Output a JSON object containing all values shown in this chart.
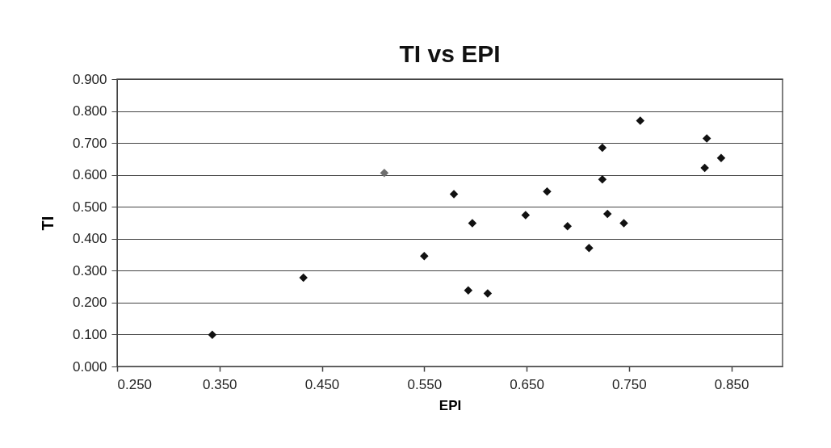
{
  "chart_data": {
    "type": "scatter",
    "title": "TI vs EPI",
    "xlabel": "EPI",
    "ylabel": "TI",
    "x": [
      0.343,
      0.432,
      0.511,
      0.55,
      0.579,
      0.593,
      0.597,
      0.612,
      0.649,
      0.67,
      0.69,
      0.711,
      0.724,
      0.724,
      0.729,
      0.745,
      0.761,
      0.824,
      0.826,
      0.84
    ],
    "values": [
      0.099,
      0.278,
      0.606,
      0.346,
      0.54,
      0.238,
      0.449,
      0.229,
      0.474,
      0.548,
      0.439,
      0.371,
      0.586,
      0.685,
      0.478,
      0.449,
      0.77,
      0.622,
      0.714,
      0.653
    ],
    "colors": [
      "#111111",
      "#111111",
      "#6e6e6e",
      "#111111",
      "#111111",
      "#111111",
      "#111111",
      "#111111",
      "#111111",
      "#111111",
      "#111111",
      "#111111",
      "#111111",
      "#111111",
      "#111111",
      "#111111",
      "#111111",
      "#111111",
      "#111111",
      "#111111"
    ],
    "xlim": [
      0.25,
      0.9
    ],
    "xticks": [
      {
        "value": 0.25,
        "label": "0.250"
      },
      {
        "value": 0.35,
        "label": "0.350"
      },
      {
        "value": 0.45,
        "label": "0.450"
      },
      {
        "value": 0.55,
        "label": "0.550"
      },
      {
        "value": 0.65,
        "label": "0.650"
      },
      {
        "value": 0.75,
        "label": "0.750"
      },
      {
        "value": 0.85,
        "label": "0.850"
      }
    ],
    "ylim": [
      0,
      0.9
    ],
    "yticks": [
      {
        "value": 0,
        "label": "0.000"
      },
      {
        "value": 0.1,
        "label": "0.100"
      },
      {
        "value": 0.2,
        "label": "0.200"
      },
      {
        "value": 0.3,
        "label": "0.300"
      },
      {
        "value": 0.4,
        "label": "0.400"
      },
      {
        "value": 0.5,
        "label": "0.500"
      },
      {
        "value": 0.6,
        "label": "0.600"
      },
      {
        "value": 0.7,
        "label": "0.700"
      },
      {
        "value": 0.8,
        "label": "0.800"
      },
      {
        "value": 0.9,
        "label": "0.900"
      }
    ],
    "grid": "y",
    "marker": "diamond"
  }
}
